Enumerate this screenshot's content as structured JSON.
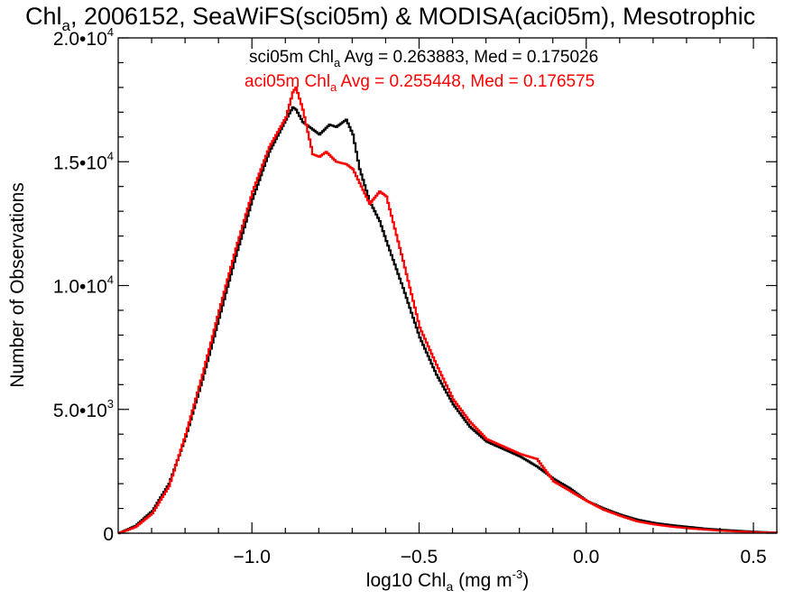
{
  "chart_data": {
    "type": "line",
    "title": {
      "pre": "Chl",
      "sub": "a",
      "post": ", 2006152, SeaWiFS(sci05m) & MODISA(aci05m), Mesotrophic"
    },
    "xlabel": {
      "pre": "log10 Chl",
      "sub": "a",
      "mid": " (mg m",
      "sup": "-3",
      "post": ")"
    },
    "ylabel": "Number of Observations",
    "xlim": [
      -1.4,
      0.57
    ],
    "ylim": [
      0,
      20000
    ],
    "x_ticks": [
      {
        "value": -1.0,
        "label": "−1.0"
      },
      {
        "value": -0.5,
        "label": "−0.5"
      },
      {
        "value": 0.0,
        "label": "0.0"
      },
      {
        "value": 0.5,
        "label": "0.5"
      }
    ],
    "y_ticks": [
      {
        "value": 0,
        "mant": "0",
        "exp": ""
      },
      {
        "value": 5000,
        "mant": "5.0•10",
        "exp": "3"
      },
      {
        "value": 10000,
        "mant": "1.0•10",
        "exp": "4"
      },
      {
        "value": 15000,
        "mant": "1.5•10",
        "exp": "4"
      },
      {
        "value": 20000,
        "mant": "2.0•10",
        "exp": "4"
      }
    ],
    "legend": [
      {
        "pre": "sci05m Chl",
        "sub": "a",
        "post": " Avg = 0.263883, Med = 0.175026",
        "color": "#000000"
      },
      {
        "pre": "aci05m Chl",
        "sub": "a",
        "post": " Avg = 0.255448, Med = 0.176575",
        "color": "#ff0000"
      }
    ],
    "series": [
      {
        "color": "#000000",
        "x": [
          -1.4,
          -1.35,
          -1.3,
          -1.25,
          -1.2,
          -1.15,
          -1.1,
          -1.05,
          -1.0,
          -0.95,
          -0.9,
          -0.88,
          -0.87,
          -0.85,
          -0.8,
          -0.77,
          -0.75,
          -0.72,
          -0.7,
          -0.68,
          -0.65,
          -0.62,
          -0.6,
          -0.55,
          -0.5,
          -0.45,
          -0.4,
          -0.35,
          -0.3,
          -0.25,
          -0.2,
          -0.15,
          -0.1,
          -0.05,
          0.0,
          0.05,
          0.1,
          0.15,
          0.2,
          0.25,
          0.3,
          0.35,
          0.4,
          0.45,
          0.5,
          0.57
        ],
        "y": [
          0,
          300,
          900,
          2000,
          3900,
          6200,
          8700,
          11200,
          13500,
          15400,
          16700,
          17200,
          17100,
          16600,
          16100,
          16500,
          16400,
          16700,
          16100,
          14700,
          13400,
          12600,
          11800,
          9900,
          7900,
          6400,
          5200,
          4300,
          3700,
          3400,
          3100,
          2700,
          2200,
          1800,
          1300,
          1000,
          750,
          550,
          420,
          330,
          260,
          190,
          140,
          100,
          60,
          20
        ]
      },
      {
        "color": "#ff0000",
        "x": [
          -1.4,
          -1.35,
          -1.3,
          -1.25,
          -1.2,
          -1.15,
          -1.1,
          -1.05,
          -1.0,
          -0.95,
          -0.9,
          -0.88,
          -0.87,
          -0.85,
          -0.82,
          -0.8,
          -0.78,
          -0.75,
          -0.72,
          -0.7,
          -0.65,
          -0.62,
          -0.6,
          -0.55,
          -0.5,
          -0.45,
          -0.4,
          -0.35,
          -0.3,
          -0.25,
          -0.2,
          -0.15,
          -0.1,
          -0.05,
          0.0,
          0.05,
          0.1,
          0.15,
          0.2,
          0.25,
          0.3,
          0.35,
          0.4,
          0.45,
          0.5,
          0.57
        ],
        "y": [
          0,
          250,
          800,
          1900,
          4000,
          6400,
          9000,
          11500,
          13800,
          15600,
          16800,
          17800,
          18000,
          17100,
          15300,
          15200,
          15400,
          15000,
          14900,
          14700,
          13300,
          13800,
          13600,
          11000,
          8300,
          6800,
          5400,
          4500,
          3800,
          3500,
          3200,
          3000,
          2100,
          1700,
          1300,
          950,
          700,
          480,
          360,
          270,
          200,
          150,
          100,
          70,
          40,
          20
        ]
      }
    ]
  }
}
